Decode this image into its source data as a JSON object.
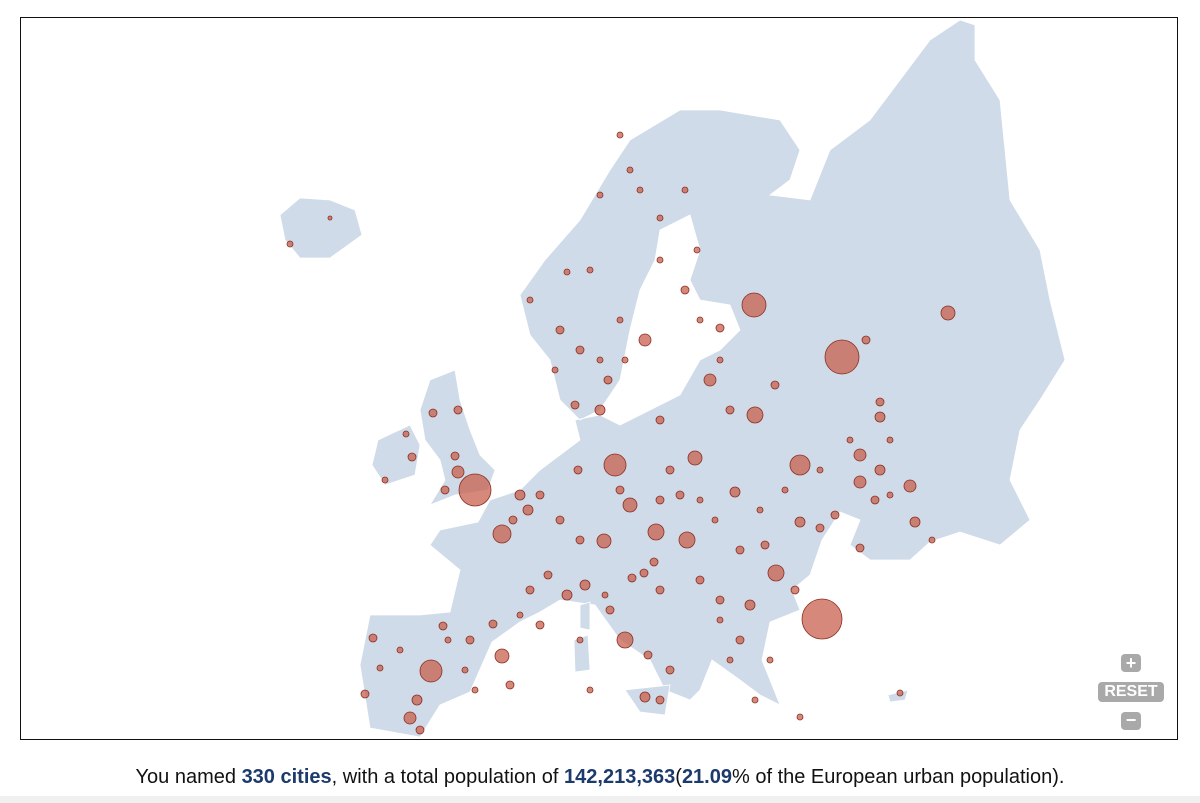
{
  "controls": {
    "reset": "RESET"
  },
  "caption": {
    "lead": "You named",
    "cities": "330 cities",
    "middle": ", with a total population of",
    "population": "142,213,363",
    "open": "(",
    "share": "21.09",
    "tail": "% of the European urban population)."
  }
}
